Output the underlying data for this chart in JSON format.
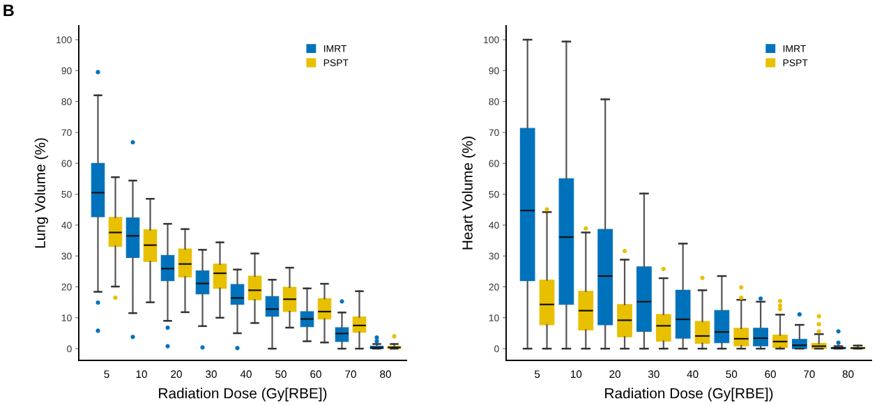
{
  "chart_data": [
    {
      "type": "box",
      "annotations": [
        "B"
      ],
      "xlabel": "Radiation Dose (Gy[RBE])",
      "ylabel": "Lung Volume (%)",
      "categories": [
        "5",
        "10",
        "20",
        "30",
        "40",
        "50",
        "60",
        "70",
        "80"
      ],
      "ylim": [
        -3.8,
        104.5
      ],
      "yticks": [
        0,
        10,
        20,
        30,
        40,
        50,
        60,
        70,
        80,
        90,
        100
      ],
      "legend": "top right",
      "grid": false,
      "series": [
        {
          "name": "IMRT",
          "color": "#0072bc",
          "boxes": [
            {
              "low": 18.4,
              "q1": 42.7,
              "median": 50.5,
              "q3": 60,
              "high": 82,
              "outliers": [
                89.5,
                14.9,
                5.8
              ]
            },
            {
              "low": 11.5,
              "q1": 29.5,
              "median": 36.5,
              "q3": 42.3,
              "high": 54.4,
              "outliers": [
                66.8,
                3.8
              ]
            },
            {
              "low": 9,
              "q1": 22,
              "median": 25.9,
              "q3": 30.2,
              "high": 40.4,
              "outliers": [
                6.8,
                0.8
              ]
            },
            {
              "low": 7.3,
              "q1": 17.7,
              "median": 21.1,
              "q3": 25.2,
              "high": 32,
              "outliers": [
                0.4
              ]
            },
            {
              "low": 5,
              "q1": 14.3,
              "median": 16.4,
              "q3": 20.8,
              "high": 25.6,
              "outliers": [
                0.2
              ]
            },
            {
              "low": 0,
              "q1": 10.5,
              "median": 12.8,
              "q3": 16.9,
              "high": 22.3
            },
            {
              "low": 2.4,
              "q1": 7.1,
              "median": 9.6,
              "q3": 12,
              "high": 19.5
            },
            {
              "low": 0,
              "q1": 2.3,
              "median": 4.9,
              "q3": 6.8,
              "high": 11.7,
              "outliers": [
                15.3
              ]
            },
            {
              "low": 0,
              "q1": 0,
              "median": 0.3,
              "q3": 0.8,
              "high": 1.5,
              "outliers": [
                2.4,
                3.6
              ]
            }
          ]
        },
        {
          "name": "PSPT",
          "color": "#e8c000",
          "boxes": [
            {
              "low": 20.1,
              "q1": 33.1,
              "median": 37.6,
              "q3": 42.5,
              "high": 55.5,
              "outliers": [
                16.5
              ]
            },
            {
              "low": 15,
              "q1": 28.2,
              "median": 33.5,
              "q3": 38.5,
              "high": 48.5
            },
            {
              "low": 11.8,
              "q1": 23.2,
              "median": 27.4,
              "q3": 32.3,
              "high": 38.7
            },
            {
              "low": 10,
              "q1": 19.5,
              "median": 24.4,
              "q3": 27.4,
              "high": 34.4
            },
            {
              "low": 8.3,
              "q1": 15.8,
              "median": 18.9,
              "q3": 23.5,
              "high": 30.8
            },
            {
              "low": 6.8,
              "q1": 12,
              "median": 16,
              "q3": 19.9,
              "high": 26.2
            },
            {
              "low": 2,
              "q1": 9.6,
              "median": 12,
              "q3": 16.2,
              "high": 21
            },
            {
              "low": 0,
              "q1": 5.3,
              "median": 7.5,
              "q3": 10.3,
              "high": 18.6
            },
            {
              "low": 0,
              "q1": 0,
              "median": 0.4,
              "q3": 0.8,
              "high": 1.5,
              "outliers": [
                4
              ]
            }
          ]
        }
      ]
    },
    {
      "type": "box",
      "xlabel": "Radiation Dose (Gy[RBE])",
      "ylabel": "Heart Volume (%)",
      "categories": [
        "5",
        "10",
        "20",
        "30",
        "40",
        "50",
        "60",
        "70",
        "80"
      ],
      "ylim": [
        -3.8,
        104.5
      ],
      "yticks": [
        0,
        10,
        20,
        30,
        40,
        50,
        60,
        70,
        80,
        90,
        100
      ],
      "legend": "top right",
      "grid": false,
      "series": [
        {
          "name": "IMRT",
          "color": "#0072bc",
          "boxes": [
            {
              "low": 0,
              "q1": 22,
              "median": 44.7,
              "q3": 71.3,
              "high": 100
            },
            {
              "low": 0,
              "q1": 14.3,
              "median": 36.1,
              "q3": 55,
              "high": 99.4
            },
            {
              "low": 0,
              "q1": 7.7,
              "median": 23.5,
              "q3": 38.6,
              "high": 80.7
            },
            {
              "low": 0,
              "q1": 5.6,
              "median": 15.2,
              "q3": 26.5,
              "high": 50.2
            },
            {
              "low": 0,
              "q1": 3.4,
              "median": 9.5,
              "q3": 18.9,
              "high": 34
            },
            {
              "low": 0,
              "q1": 1.9,
              "median": 5.4,
              "q3": 12.4,
              "high": 23.5
            },
            {
              "low": 0,
              "q1": 0.9,
              "median": 3.4,
              "q3": 6.6,
              "high": 15.2,
              "outliers": [
                16.2
              ]
            },
            {
              "low": 0,
              "q1": 0,
              "median": 1.1,
              "q3": 3,
              "high": 7.7,
              "outliers": [
                11.1
              ]
            },
            {
              "low": 0,
              "q1": 0,
              "median": 0.2,
              "q3": 0.4,
              "high": 0.8,
              "outliers": [
                1.9,
                5.6
              ]
            }
          ]
        },
        {
          "name": "PSPT",
          "color": "#e8c000",
          "boxes": [
            {
              "low": 0,
              "q1": 7.7,
              "median": 14.3,
              "q3": 22.2,
              "high": 44.2,
              "outliers": [
                45.1
              ]
            },
            {
              "low": 0,
              "q1": 6,
              "median": 12.3,
              "q3": 18.6,
              "high": 37.6,
              "outliers": [
                38.9
              ]
            },
            {
              "low": 0,
              "q1": 3.8,
              "median": 9.2,
              "q3": 14.3,
              "high": 28.8,
              "outliers": [
                31.6
              ]
            },
            {
              "low": 0,
              "q1": 2.4,
              "median": 7.4,
              "q3": 11.1,
              "high": 22.8,
              "outliers": [
                25.8
              ]
            },
            {
              "low": 0,
              "q1": 1.7,
              "median": 4.1,
              "q3": 8.8,
              "high": 18.9,
              "outliers": [
                22.9
              ]
            },
            {
              "low": 0,
              "q1": 0.9,
              "median": 3.2,
              "q3": 6.6,
              "high": 15.8,
              "outliers": [
                16.5,
                19.8
              ]
            },
            {
              "low": 0,
              "q1": 0.4,
              "median": 2.3,
              "q3": 4.4,
              "high": 11,
              "outliers": [
                12.8,
                13.9,
                15.4
              ]
            },
            {
              "low": 0,
              "q1": 0,
              "median": 0.8,
              "q3": 1.7,
              "high": 4.7,
              "outliers": [
                5.6,
                7.9,
                10.5
              ]
            },
            {
              "low": 0,
              "q1": 0,
              "median": 0.2,
              "q3": 0.4,
              "high": 1
            }
          ]
        }
      ]
    }
  ]
}
